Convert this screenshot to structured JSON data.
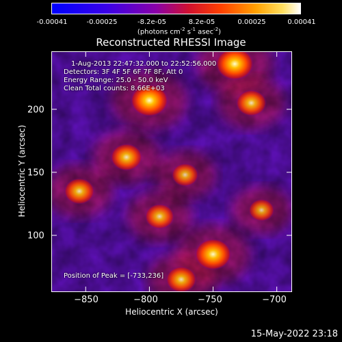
{
  "colorbar": {
    "ticks": [
      "-0.00041",
      "-0.00025",
      "-8.2e-05",
      "8.2e-05",
      "0.00025",
      "0.00041"
    ],
    "units_main": "(photons cm",
    "units_sup1": "-2",
    "units_mid": " s",
    "units_sup2": "-1",
    "units_tail": " asec",
    "units_sup3": "-2",
    "units_end": ")"
  },
  "chart_data": {
    "type": "heatmap",
    "title": "Reconstructed RHESSI Image",
    "xlabel": "Heliocentric X (arcsec)",
    "ylabel": "Heliocentric Y (arcsec)",
    "xlim": [
      -877,
      -688
    ],
    "ylim": [
      55,
      246
    ],
    "x_ticks": [
      -850,
      -800,
      -750,
      -700
    ],
    "x_tick_labels": [
      "−850",
      "−800",
      "−750",
      "−700"
    ],
    "y_ticks": [
      100,
      150,
      200
    ],
    "y_tick_labels": [
      "100",
      "150",
      "200"
    ],
    "color_range": [
      -0.00041,
      0.00041
    ],
    "colormap": [
      "#0000ff",
      "#6a00d0",
      "#ff3000",
      "#ffa800",
      "#ffffff"
    ],
    "bright_sources": [
      {
        "x": -800,
        "y": 207,
        "level": 1.0
      },
      {
        "x": -733,
        "y": 236,
        "level": 1.0
      },
      {
        "x": -720,
        "y": 205,
        "level": 0.7
      },
      {
        "x": -818,
        "y": 162,
        "level": 0.75
      },
      {
        "x": -772,
        "y": 148,
        "level": 0.55
      },
      {
        "x": -855,
        "y": 135,
        "level": 0.7
      },
      {
        "x": -792,
        "y": 115,
        "level": 0.65
      },
      {
        "x": -750,
        "y": 85,
        "level": 0.95
      },
      {
        "x": -775,
        "y": 65,
        "level": 0.7
      },
      {
        "x": -712,
        "y": 120,
        "level": 0.5
      }
    ],
    "annotations": [
      "1-Aug-2013 22:47:32.000 to 22:52:56.000",
      "Detectors: 3F 4F 5F 6F 7F 8F, Att 0",
      "Energy Range: 25.0 - 50.0 keV",
      "Clean     Total counts: 8.66E+03",
      "Position of Peak = [-733,236]"
    ]
  },
  "timestamp": "15-May-2022 23:18"
}
